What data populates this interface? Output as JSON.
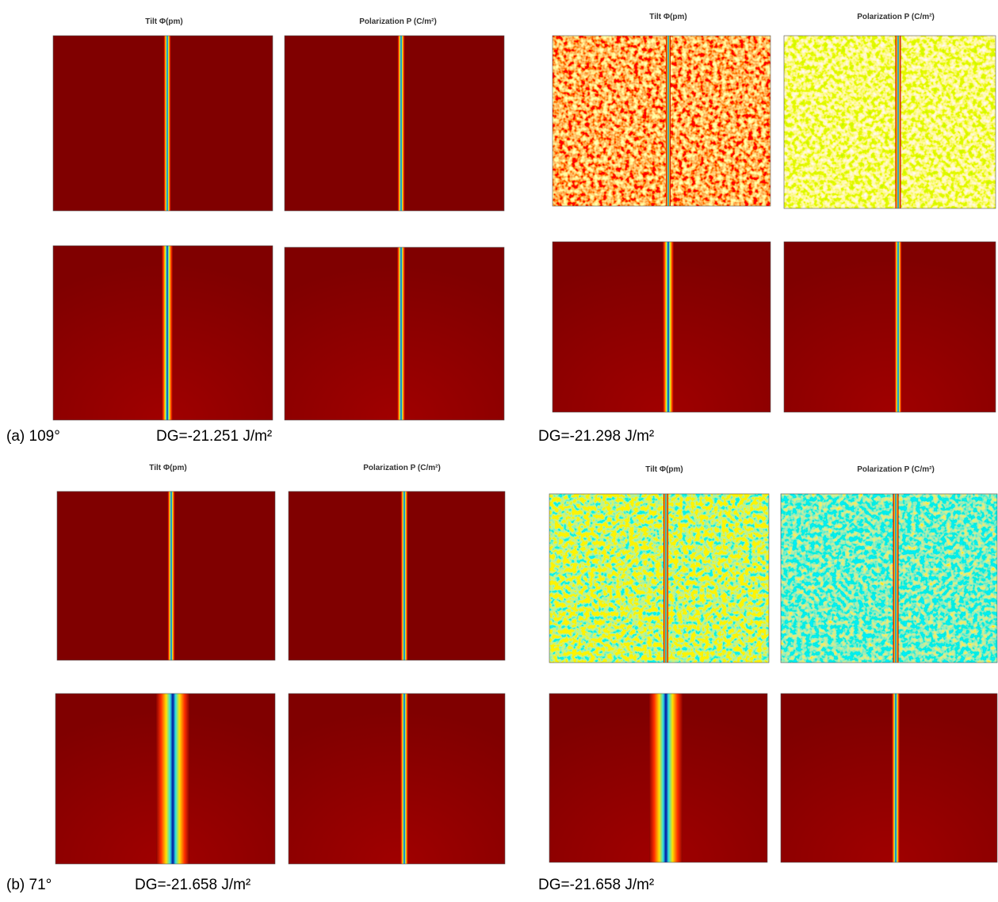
{
  "groups": [
    {
      "label": "(a) 109°",
      "titles": [
        "Tilt Φ(pm)",
        "Polarization P (C/m²)"
      ],
      "dg": [
        "DG=-21.251 J/m²",
        "DG=-21.298 J/m²"
      ]
    },
    {
      "label": "(b) 71°",
      "titles": [
        "Tilt Φ(pm)",
        "Polarization P (C/m²)"
      ],
      "dg": [
        "DG=-21.658 J/m²",
        "DG=-21.658 J/m²"
      ]
    }
  ]
}
